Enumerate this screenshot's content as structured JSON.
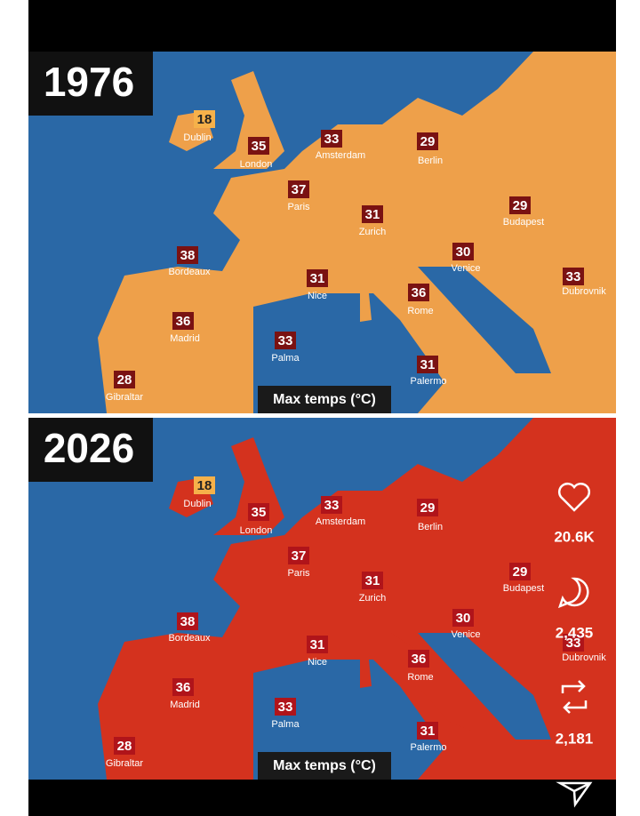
{
  "panels": [
    {
      "year": "1976",
      "legend": "Max temps (°C)",
      "cities": [
        {
          "name": "Dublin",
          "temp": 18
        },
        {
          "name": "London",
          "temp": 35
        },
        {
          "name": "Amsterdam",
          "temp": 33
        },
        {
          "name": "Berlin",
          "temp": 29
        },
        {
          "name": "Paris",
          "temp": 37
        },
        {
          "name": "Zurich",
          "temp": 31
        },
        {
          "name": "Budapest",
          "temp": 29
        },
        {
          "name": "Bordeaux",
          "temp": 38
        },
        {
          "name": "Venice",
          "temp": 30
        },
        {
          "name": "Nice",
          "temp": 31
        },
        {
          "name": "Rome",
          "temp": 36
        },
        {
          "name": "Dubrovnik",
          "temp": 33
        },
        {
          "name": "Madrid",
          "temp": 36
        },
        {
          "name": "Palma",
          "temp": 33
        },
        {
          "name": "Palermo",
          "temp": 31
        },
        {
          "name": "Gibraltar",
          "temp": 28
        }
      ]
    },
    {
      "year": "2026",
      "legend": "Max temps (°C)",
      "cities": [
        {
          "name": "Dublin",
          "temp": 18
        },
        {
          "name": "London",
          "temp": 35
        },
        {
          "name": "Amsterdam",
          "temp": 33
        },
        {
          "name": "Berlin",
          "temp": 29
        },
        {
          "name": "Paris",
          "temp": 37
        },
        {
          "name": "Zurich",
          "temp": 31
        },
        {
          "name": "Budapest",
          "temp": 29
        },
        {
          "name": "Bordeaux",
          "temp": 38
        },
        {
          "name": "Venice",
          "temp": 30
        },
        {
          "name": "Nice",
          "temp": 31
        },
        {
          "name": "Rome",
          "temp": 36
        },
        {
          "name": "Dubrovnik",
          "temp": 33
        },
        {
          "name": "Madrid",
          "temp": 36
        },
        {
          "name": "Palma",
          "temp": 33
        },
        {
          "name": "Palermo",
          "temp": 31
        },
        {
          "name": "Gibraltar",
          "temp": 28
        }
      ]
    }
  ],
  "actions": {
    "likes": "20.6K",
    "comments": "2,435",
    "reposts": "2,181"
  }
}
